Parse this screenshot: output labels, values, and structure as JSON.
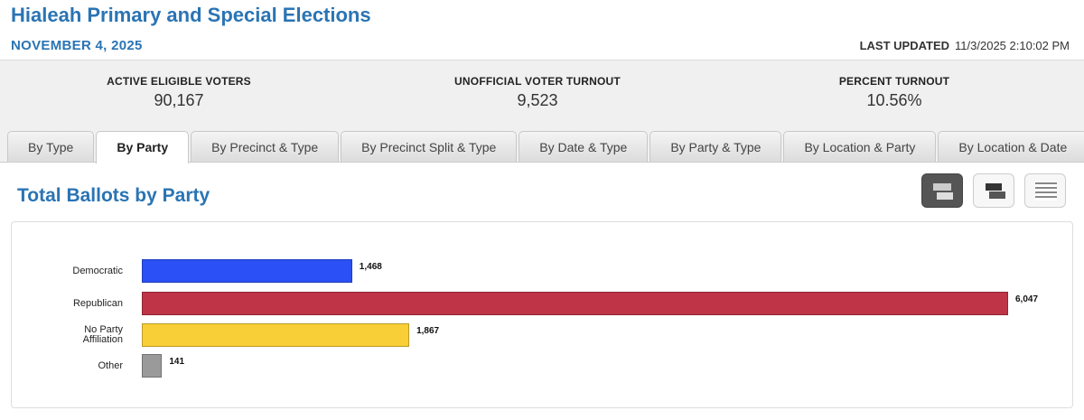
{
  "header": {
    "title": "Hialeah Primary and Special Elections",
    "date": "NOVEMBER 4, 2025",
    "last_updated_label": "LAST UPDATED",
    "last_updated_value": "11/3/2025 2:10:02 PM"
  },
  "stats": [
    {
      "label": "ACTIVE ELIGIBLE VOTERS",
      "value": "90,167"
    },
    {
      "label": "UNOFFICIAL VOTER TURNOUT",
      "value": "9,523"
    },
    {
      "label": "PERCENT TURNOUT",
      "value": "10.56%"
    }
  ],
  "tabs": [
    "By Type",
    "By Party",
    "By Precinct & Type",
    "By Precinct Split & Type",
    "By Date & Type",
    "By Party & Type",
    "By Location & Party",
    "By Location & Date"
  ],
  "chart_data": {
    "type": "bar",
    "orientation": "horizontal",
    "title": "Total Ballots by Party",
    "categories": [
      "Democratic",
      "Republican",
      "No Party Affiliation",
      "Other"
    ],
    "values": [
      1468,
      6047,
      1867,
      141
    ],
    "value_labels": [
      "1,468",
      "6,047",
      "1,867",
      "141"
    ],
    "colors": [
      "#2b50f5",
      "#bf3447",
      "#f8cf36",
      "#9a9a9a"
    ]
  }
}
